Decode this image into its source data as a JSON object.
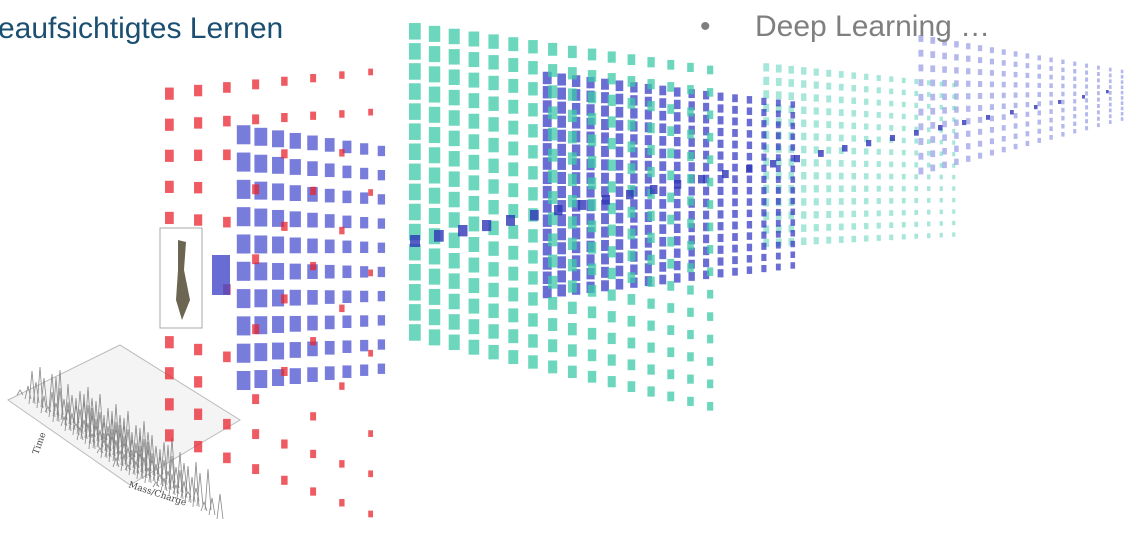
{
  "header": {
    "title": "eaufsichtigtes Lernen"
  },
  "bullet": {
    "marker": "•",
    "text": "Deep Learning …"
  },
  "figure": {
    "axis_labels": [
      "Time",
      "Mass/Charge"
    ]
  }
}
